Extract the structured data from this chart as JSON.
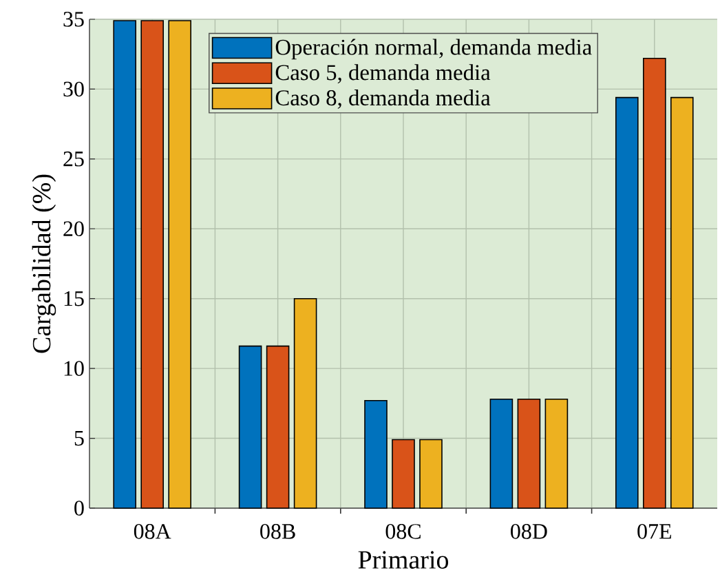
{
  "chart_data": {
    "type": "bar",
    "xlabel": "Primario",
    "ylabel": "Cargabilidad (%)",
    "categories": [
      "08A",
      "08B",
      "08C",
      "08D",
      "07E"
    ],
    "series": [
      {
        "name": "Operación normal, demanda media",
        "color": "#0072bd",
        "values": [
          34.9,
          11.6,
          7.7,
          7.8,
          29.4
        ]
      },
      {
        "name": "Caso 5, demanda media",
        "color": "#d95319",
        "values": [
          34.9,
          11.6,
          4.9,
          7.8,
          32.2
        ]
      },
      {
        "name": "Caso 8, demanda media",
        "color": "#edb120",
        "values": [
          34.9,
          15.0,
          4.9,
          7.8,
          29.4
        ]
      }
    ],
    "ylim": [
      0,
      35
    ],
    "yticks": [
      0,
      5,
      10,
      15,
      20,
      25,
      30,
      35
    ],
    "grid": true,
    "legend": "top"
  }
}
